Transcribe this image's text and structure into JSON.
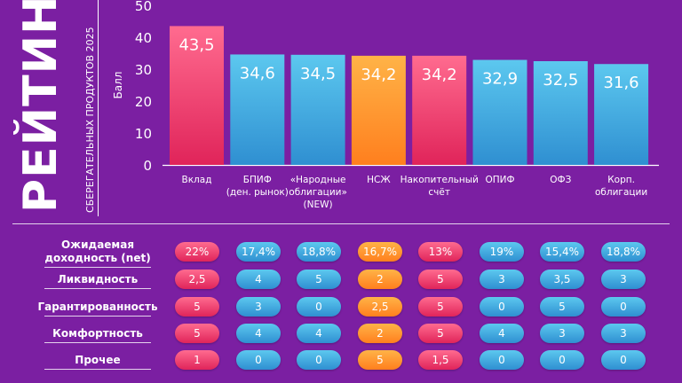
{
  "title": {
    "main": "РЕЙТИНГ",
    "subtitle": "СБЕРЕГАТЕЛЬНЫХ ПРОДУКТОВ 2025"
  },
  "colors": {
    "background": "#7b1fa2",
    "red": "#e0245a",
    "blue": "#2f8fd1",
    "orange": "#ff7f1e"
  },
  "chart_data": {
    "type": "bar",
    "ylabel": "Балл",
    "ylim": [
      0,
      50
    ],
    "yticks": [
      "0",
      "10",
      "20",
      "30",
      "40",
      "50"
    ],
    "grid": false,
    "categories": [
      [
        "Вклад"
      ],
      [
        "БПИФ",
        "(ден. рынок)"
      ],
      [
        "«Народные",
        "облигации»",
        "(NEW)"
      ],
      [
        "НСЖ"
      ],
      [
        "Накопительный",
        "счёт"
      ],
      [
        "ОПИФ"
      ],
      [
        "ОФЗ"
      ],
      [
        "Корп.",
        "облигации"
      ]
    ],
    "values": [
      43.5,
      34.6,
      34.5,
      34.2,
      34.2,
      32.9,
      32.5,
      31.6
    ],
    "value_labels": [
      "43,5",
      "34,6",
      "34,5",
      "34,2",
      "34,2",
      "32,9",
      "32,5",
      "31,6"
    ],
    "bar_colors": [
      "red",
      "blue",
      "blue",
      "orange",
      "red",
      "blue",
      "blue",
      "blue"
    ]
  },
  "table": {
    "rows": [
      {
        "label": [
          "Ожидаемая",
          "доходность (net)"
        ],
        "values": [
          "22%",
          "17,4%",
          "18,8%",
          "16,7%",
          "13%",
          "19%",
          "15,4%",
          "18,8%"
        ],
        "colors": [
          "red",
          "blue",
          "blue",
          "orange",
          "red",
          "blue",
          "blue",
          "blue"
        ]
      },
      {
        "label": [
          "Ликвидность"
        ],
        "values": [
          "2,5",
          "4",
          "5",
          "2",
          "5",
          "3",
          "3,5",
          "3"
        ],
        "colors": [
          "red",
          "blue",
          "blue",
          "orange",
          "red",
          "blue",
          "blue",
          "blue"
        ]
      },
      {
        "label": [
          "Гарантированность"
        ],
        "values": [
          "5",
          "3",
          "0",
          "2,5",
          "5",
          "0",
          "5",
          "0"
        ],
        "colors": [
          "red",
          "blue",
          "blue",
          "orange",
          "red",
          "blue",
          "blue",
          "blue"
        ]
      },
      {
        "label": [
          "Комфортность"
        ],
        "values": [
          "5",
          "4",
          "4",
          "2",
          "5",
          "4",
          "3",
          "3"
        ],
        "colors": [
          "red",
          "blue",
          "blue",
          "orange",
          "red",
          "blue",
          "blue",
          "blue"
        ]
      },
      {
        "label": [
          "Прочее"
        ],
        "values": [
          "1",
          "0",
          "0",
          "5",
          "1,5",
          "0",
          "0",
          "0"
        ],
        "colors": [
          "red",
          "blue",
          "blue",
          "orange",
          "red",
          "blue",
          "blue",
          "blue"
        ]
      }
    ]
  }
}
